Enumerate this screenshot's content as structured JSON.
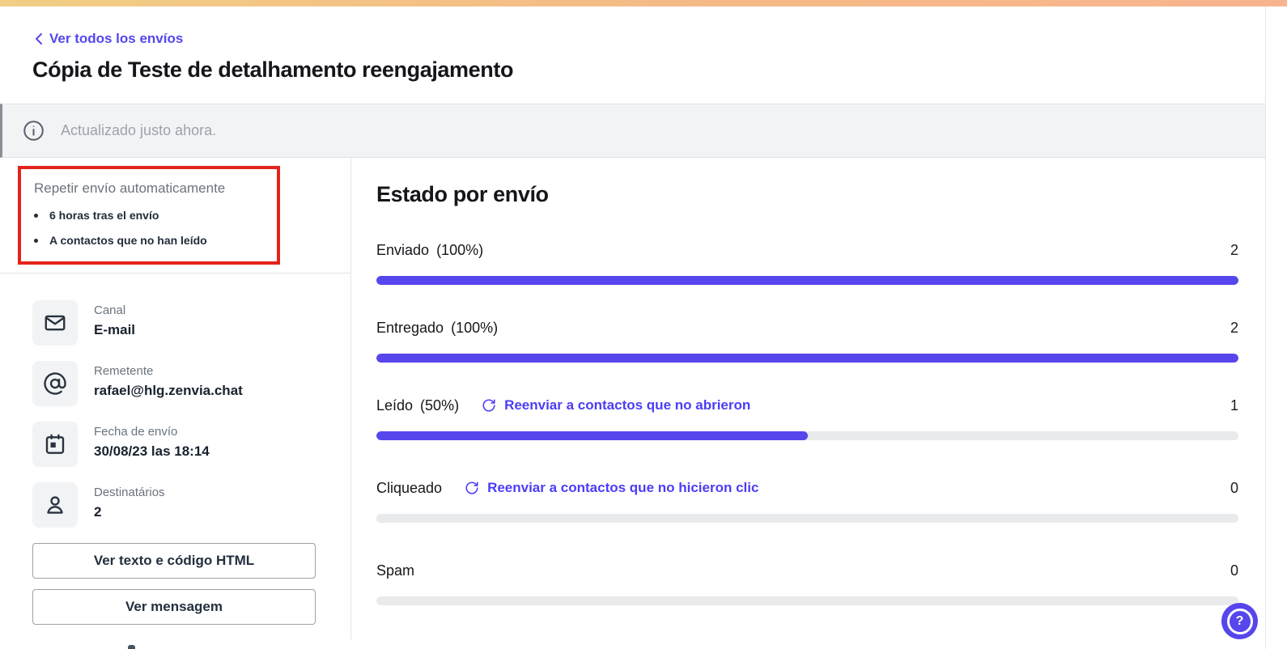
{
  "colors": {
    "accent_purple": "#5646EC",
    "link_purple": "#4B3DF6",
    "annotation_red": "#E2241B",
    "gradient_left": "#F2CF85",
    "gradient_right": "#F8B48E",
    "notice_bg": "#F2F3F5"
  },
  "header": {
    "back_label": "Ver todos los envíos",
    "title": "Cópia de Teste de detalhamento reengajamento"
  },
  "notice": {
    "icon": "info-icon",
    "text": "Actualizado justo ahora."
  },
  "annotation": {
    "title": "Repetir envío automaticamente",
    "items": [
      "6 horas tras el envío",
      "A contactos que no han leído"
    ]
  },
  "details": [
    {
      "icon": "envelope-icon",
      "label": "Canal",
      "value": "E-mail"
    },
    {
      "icon": "at-sign-icon",
      "label": "Remetente",
      "value": "rafael@hlg.zenvia.chat"
    },
    {
      "icon": "calendar-icon",
      "label": "Fecha de envío",
      "value": "30/08/23 las 18:14"
    },
    {
      "icon": "person-icon",
      "label": "Destinatários",
      "value": "2"
    }
  ],
  "actions": {
    "view_html": "Ver texto e código HTML",
    "view_message": "Ver mensagem"
  },
  "main": {
    "title": "Estado por envío"
  },
  "stats": [
    {
      "label": "Enviado",
      "percent_label": "(100%)",
      "value": "2",
      "percent": 100
    },
    {
      "label": "Entregado",
      "percent_label": "(100%)",
      "value": "2",
      "percent": 100
    },
    {
      "label": "Leído",
      "percent_label": "(50%)",
      "value": "1",
      "percent": 50,
      "link_label": "Reenviar a contactos que no abrieron",
      "link_icon": "refresh-icon"
    },
    {
      "label": "Cliqueado",
      "percent_label": "",
      "value": "0",
      "percent": 0,
      "link_label": "Reenviar a contactos que no hicieron clic",
      "link_icon": "refresh-icon"
    },
    {
      "label": "Spam",
      "percent_label": "",
      "value": "0",
      "percent": 0
    }
  ],
  "help": {
    "icon": "question-mark-icon"
  }
}
